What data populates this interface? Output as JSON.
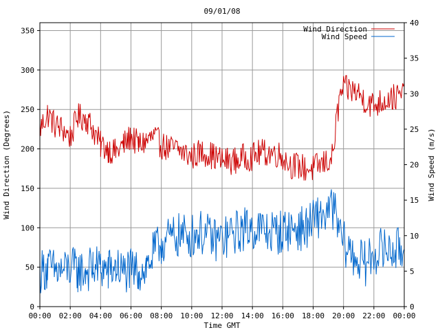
{
  "chart_data": {
    "type": "line",
    "title": "09/01/08",
    "xlabel": "Time GMT",
    "ylabel_left": "Wind Direction (Degrees)",
    "ylabel_right": "Wind Speed (m/s)",
    "x_range": [
      "00:00",
      "24:00"
    ],
    "x_tick_labels": [
      "00:00",
      "02:00",
      "04:00",
      "06:00",
      "08:00",
      "10:00",
      "12:00",
      "14:00",
      "16:00",
      "18:00",
      "20:00",
      "22:00",
      "00:00"
    ],
    "y_left_range": [
      0,
      360
    ],
    "y_left_ticks": [
      0,
      50,
      100,
      150,
      200,
      250,
      300,
      350
    ],
    "y_right_range": [
      0,
      40
    ],
    "y_right_ticks": [
      0,
      5,
      10,
      15,
      20,
      25,
      30,
      35,
      40
    ],
    "grid": true,
    "legend_position": "top-right",
    "x_unit": "hours",
    "series": [
      {
        "name": "Wind Direction",
        "axis": "left",
        "color": "#cc0000",
        "x": [
          0,
          0.5,
          1,
          1.5,
          2,
          2.5,
          3,
          3.5,
          4,
          4.5,
          5,
          5.5,
          6,
          6.5,
          7,
          7.5,
          8,
          8.5,
          9,
          9.5,
          10,
          10.5,
          11,
          11.5,
          12,
          12.5,
          13,
          13.5,
          14,
          14.5,
          15,
          15.5,
          16,
          16.5,
          17,
          17.5,
          18,
          18.5,
          19,
          19.3,
          19.5,
          19.8,
          20,
          20.5,
          21,
          21.5,
          22,
          22.5,
          23,
          23.5,
          24
        ],
        "values": [
          225,
          245,
          230,
          225,
          215,
          240,
          240,
          225,
          205,
          200,
          195,
          205,
          215,
          205,
          210,
          215,
          205,
          200,
          200,
          195,
          190,
          195,
          195,
          190,
          185,
          185,
          185,
          190,
          190,
          195,
          195,
          195,
          190,
          180,
          178,
          175,
          175,
          180,
          185,
          190,
          230,
          270,
          275,
          275,
          270,
          260,
          255,
          260,
          265,
          265,
          270
        ]
      },
      {
        "name": "Wind Speed",
        "axis": "right",
        "color": "#0066cc",
        "x": [
          0,
          0.5,
          1,
          1.5,
          2,
          2.5,
          3,
          3.5,
          4,
          4.5,
          5,
          5.5,
          6,
          6.5,
          7,
          7.5,
          8,
          8.5,
          9,
          9.5,
          10,
          10.5,
          11,
          11.5,
          12,
          12.5,
          13,
          13.5,
          14,
          14.5,
          15,
          15.5,
          16,
          16.5,
          17,
          17.5,
          18,
          18.5,
          19,
          19.3,
          19.5,
          19.8,
          20,
          20.5,
          21,
          21.5,
          22,
          22.5,
          23,
          23.5,
          24
        ],
        "values": [
          5,
          5.5,
          5,
          5,
          5.5,
          5,
          5,
          5.5,
          5.5,
          5,
          5.5,
          5,
          5,
          5,
          5.5,
          7.5,
          9,
          9.5,
          10,
          10,
          10,
          10.5,
          10,
          9.5,
          9.5,
          10,
          10.5,
          11,
          11,
          11,
          10.5,
          10.5,
          10.5,
          11,
          11,
          11,
          12,
          13,
          13,
          14,
          12.5,
          10,
          9,
          7.5,
          6.5,
          6,
          7.5,
          8,
          8,
          8,
          8
        ]
      }
    ]
  }
}
